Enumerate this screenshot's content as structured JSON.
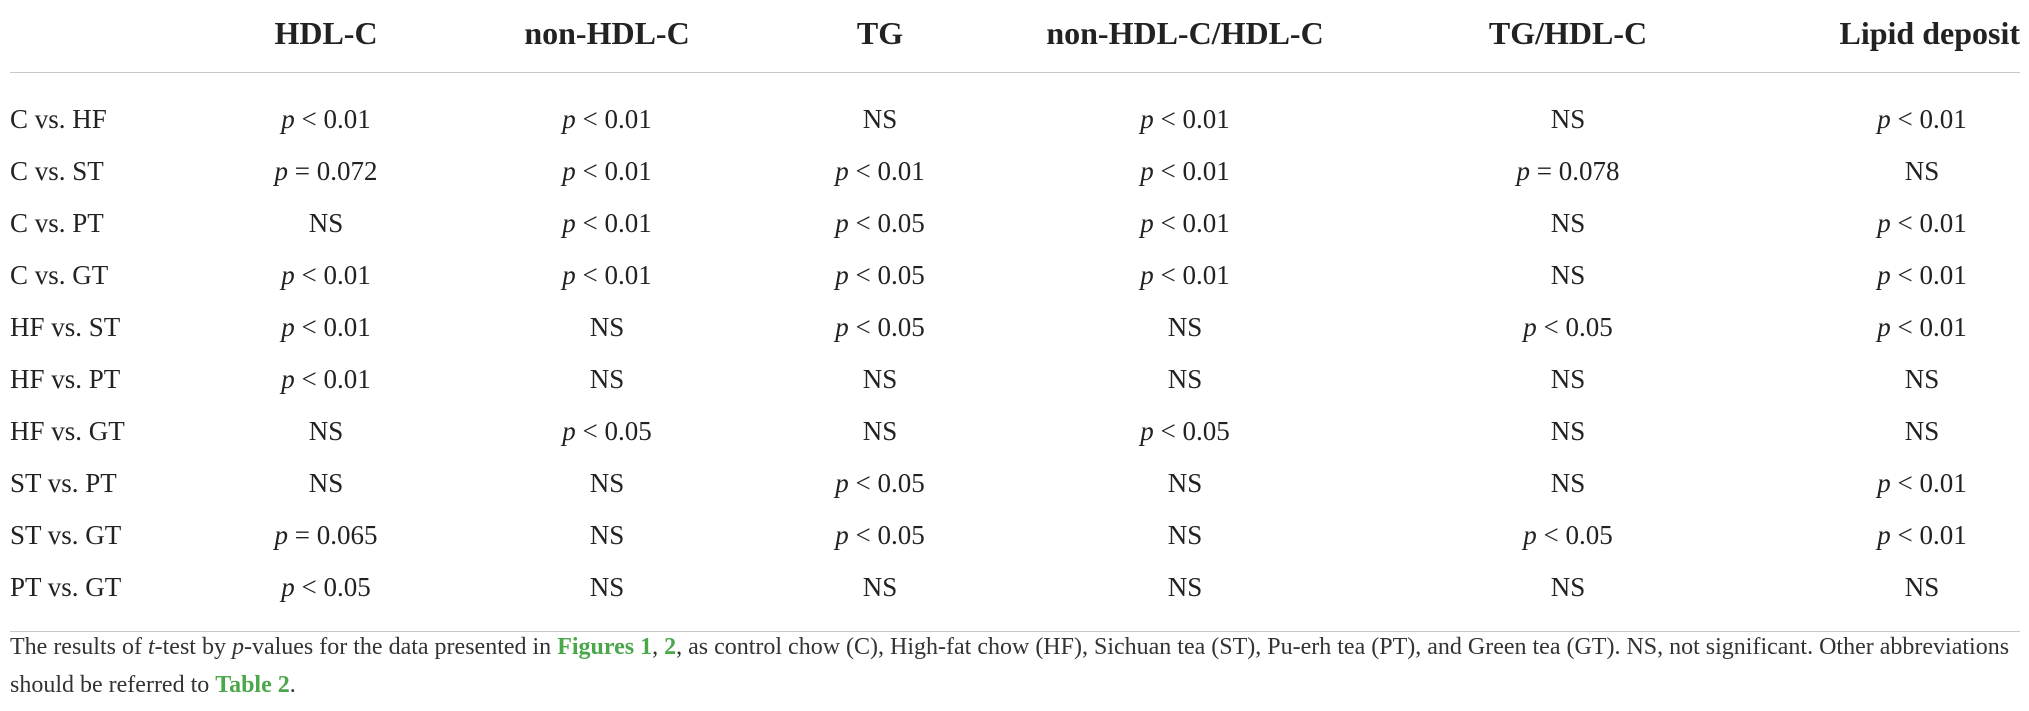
{
  "table": {
    "headers": [
      "",
      "HDL-C",
      "non-HDL-C",
      "TG",
      "non-HDL-C/HDL-C",
      "TG/HDL-C",
      "Lipid deposit"
    ],
    "rows": [
      {
        "label": "C vs. HF",
        "cells": [
          "p < 0.01",
          "p < 0.01",
          "NS",
          "p < 0.01",
          "NS",
          "p < 0.01"
        ]
      },
      {
        "label": "C vs. ST",
        "cells": [
          "p = 0.072",
          "p < 0.01",
          "p < 0.01",
          "p < 0.01",
          "p = 0.078",
          "NS"
        ]
      },
      {
        "label": "C vs. PT",
        "cells": [
          "NS",
          "p < 0.01",
          "p < 0.05",
          "p < 0.01",
          "NS",
          "p < 0.01"
        ]
      },
      {
        "label": "C vs. GT",
        "cells": [
          "p < 0.01",
          "p < 0.01",
          "p < 0.05",
          "p < 0.01",
          "NS",
          "p < 0.01"
        ]
      },
      {
        "label": "HF vs. ST",
        "cells": [
          "p < 0.01",
          "NS",
          "p < 0.05",
          "NS",
          "p < 0.05",
          "p < 0.01"
        ]
      },
      {
        "label": "HF vs. PT",
        "cells": [
          "p < 0.01",
          "NS",
          "NS",
          "NS",
          "NS",
          "NS"
        ]
      },
      {
        "label": "HF vs. GT",
        "cells": [
          "NS",
          "p < 0.05",
          "NS",
          "p < 0.05",
          "NS",
          "NS"
        ]
      },
      {
        "label": "ST vs. PT",
        "cells": [
          "NS",
          "NS",
          "p < 0.05",
          "NS",
          "NS",
          "p < 0.01"
        ]
      },
      {
        "label": "ST vs. GT",
        "cells": [
          "p = 0.065",
          "NS",
          "p < 0.05",
          "NS",
          "p < 0.05",
          "p < 0.01"
        ]
      },
      {
        "label": "PT vs. GT",
        "cells": [
          "p < 0.05",
          "NS",
          "NS",
          "NS",
          "NS",
          "NS"
        ]
      }
    ]
  },
  "footnote": {
    "text_1": "The results of ",
    "t_letter": "t",
    "text_2": "-test by ",
    "p_letter": "p",
    "text_3": "-values for the data presented in ",
    "link_figures": "Figures 1",
    "sep": ", ",
    "link_figure2": "2",
    "text_4": ", as control chow (C), High-fat chow (HF), Sichuan tea (ST), Pu-erh tea (PT), and Green tea (GT). NS, not significant. Other abbreviations should be referred to ",
    "link_table": "Table 2",
    "text_5": "."
  },
  "colors": {
    "link": "#4aa84a",
    "text": "#222222",
    "rule": "#c8c8c8"
  }
}
